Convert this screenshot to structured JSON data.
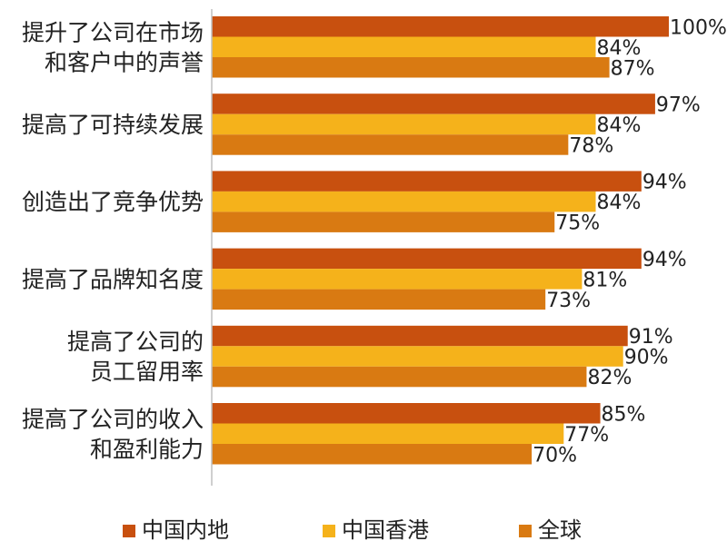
{
  "chart_data": {
    "type": "bar",
    "orientation": "horizontal",
    "categories": [
      [
        "提升了公司在市场",
        "和客户中的声誉"
      ],
      [
        "提高了可持续发展"
      ],
      [
        "创造出了竞争优势"
      ],
      [
        "提高了品牌知名度"
      ],
      [
        "提高了公司的",
        "员工留用率"
      ],
      [
        "提高了公司的收入",
        "和盈利能力"
      ]
    ],
    "series": [
      {
        "name": "中国内地",
        "color": "#C8500F",
        "values": [
          100,
          97,
          94,
          94,
          91,
          85
        ]
      },
      {
        "name": "中国香港",
        "color": "#F5B21B",
        "values": [
          84,
          84,
          84,
          81,
          90,
          77
        ]
      },
      {
        "name": "全球",
        "color": "#D97A12",
        "values": [
          87,
          78,
          75,
          73,
          82,
          70
        ]
      }
    ],
    "value_suffix": "%",
    "xlim": [
      0,
      100
    ],
    "grid": false,
    "legend_position": "bottom"
  }
}
